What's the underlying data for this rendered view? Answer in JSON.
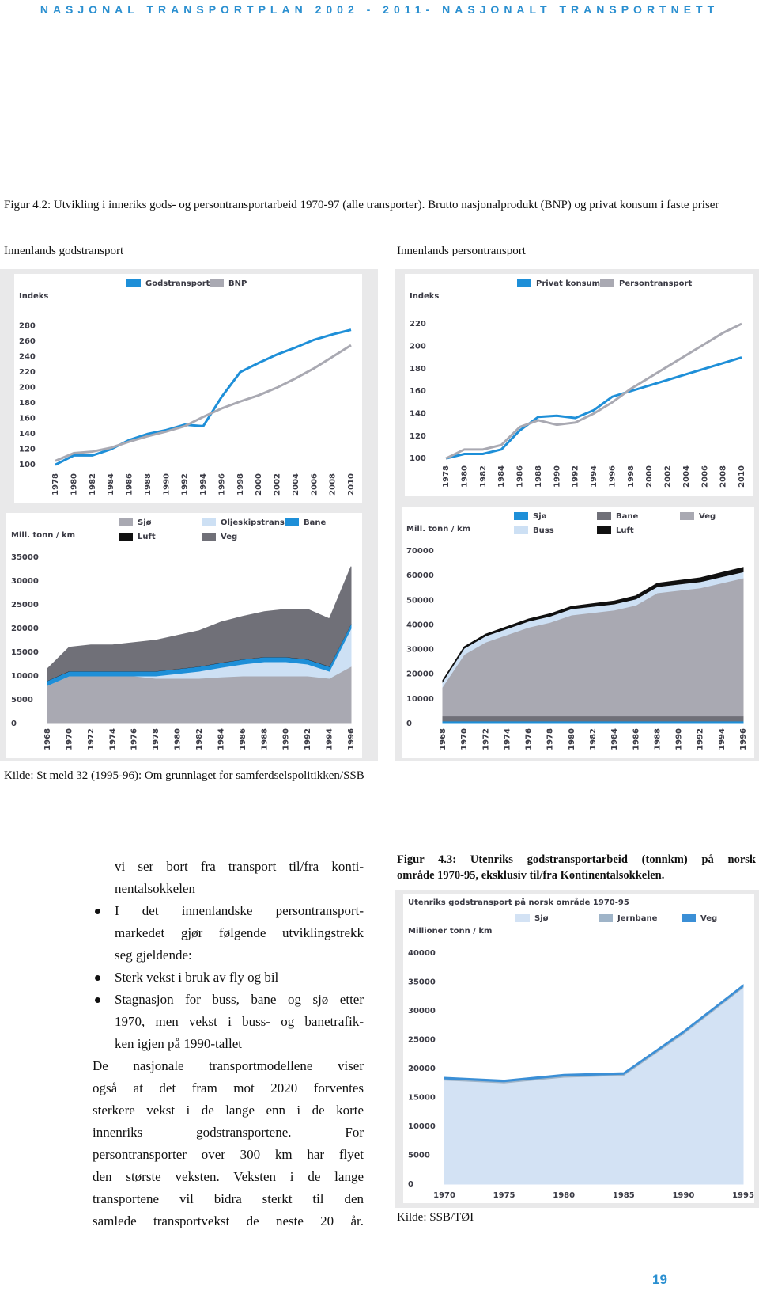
{
  "header": {
    "title": "NASJONAL TRANSPORTPLAN 2002 - 2011- NASJONALT TRANSPORTNETT"
  },
  "figure_42": {
    "caption": "Figur 4.2: Utvikling i inneriks gods- og persontransportarbeid 1970-97 (alle transporter). Brutto nasjonalprodukt (BNP) og privat konsum i faste priser",
    "left_title": "Innenlands godstransport",
    "right_title": "Innenlands persontransport",
    "source": "Kilde: St meld 32 (1995-96): Om grunnlaget for samferdselspolitikken/SSB"
  },
  "charts": [
    {
      "type": "line",
      "y_label": "Indeks",
      "categories": [
        "1978",
        "1980",
        "1982",
        "1984",
        "1986",
        "1988",
        "1990",
        "1992",
        "1994",
        "1996",
        "1998",
        "2000",
        "2002",
        "2004",
        "2006",
        "2008",
        "2010"
      ],
      "ylim": [
        95,
        290
      ],
      "yticks": [
        100,
        120,
        140,
        160,
        180,
        200,
        220,
        240,
        260,
        280
      ],
      "series": [
        {
          "name": "Godstransport",
          "color": "#1e8fd8",
          "values": [
            100,
            112,
            112,
            120,
            132,
            140,
            145,
            152,
            150,
            188,
            220,
            232,
            243,
            252,
            262,
            269,
            275
          ]
        },
        {
          "name": "BNP",
          "color": "#a9a9b2",
          "values": [
            105,
            115,
            117,
            122,
            130,
            137,
            143,
            150,
            162,
            173,
            182,
            190,
            200,
            212,
            225,
            240,
            255
          ]
        }
      ]
    },
    {
      "type": "line",
      "y_label": "Indeks",
      "categories": [
        "1978",
        "1980",
        "1982",
        "1984",
        "1986",
        "1988",
        "1990",
        "1992",
        "1994",
        "1996",
        "1998",
        "2000",
        "2002",
        "2004",
        "2006",
        "2008",
        "2010"
      ],
      "ylim": [
        98,
        225
      ],
      "yticks": [
        100,
        120,
        140,
        160,
        180,
        200,
        220
      ],
      "series": [
        {
          "name": "Privat konsum",
          "color": "#1e8fd8",
          "values": [
            100,
            104,
            104,
            108,
            125,
            137,
            138,
            136,
            143,
            155,
            160,
            165,
            170,
            175,
            180,
            185,
            190
          ]
        },
        {
          "name": "Persontransport",
          "color": "#a9a9b2",
          "values": [
            100,
            108,
            108,
            112,
            128,
            134,
            130,
            132,
            140,
            150,
            162,
            172,
            182,
            192,
            202,
            212,
            220
          ]
        }
      ]
    },
    {
      "type": "area",
      "y_label": "Mill. tonn / km",
      "categories": [
        "1968",
        "1970",
        "1972",
        "1974",
        "1976",
        "1978",
        "1980",
        "1982",
        "1984",
        "1986",
        "1988",
        "1990",
        "1992",
        "1994",
        "1996"
      ],
      "ylim": [
        0,
        35000
      ],
      "yticks": [
        0,
        5000,
        10000,
        15000,
        20000,
        25000,
        30000,
        35000
      ],
      "series": [
        {
          "name": "Sjø",
          "color": "#a9a9b2",
          "values": [
            8000,
            10000,
            10000,
            10000,
            10000,
            9500,
            9500,
            9500,
            9800,
            10000,
            10000,
            10000,
            10000,
            9500,
            12000
          ]
        },
        {
          "name": "Oljeskipstrans",
          "color": "#cde0f4",
          "values": [
            0,
            0,
            0,
            0,
            0,
            500,
            1000,
            1500,
            2000,
            2500,
            3000,
            3000,
            2500,
            1500,
            8000
          ]
        },
        {
          "name": "Bane",
          "color": "#1e8fd8",
          "values": [
            1000,
            1000,
            1000,
            1000,
            1000,
            1000,
            1000,
            1000,
            1000,
            1000,
            1000,
            1000,
            1000,
            1000,
            1000
          ]
        },
        {
          "name": "Luft",
          "color": "#111111",
          "values": [
            50,
            50,
            50,
            50,
            50,
            50,
            50,
            50,
            50,
            50,
            50,
            50,
            50,
            50,
            50
          ]
        },
        {
          "name": "Veg",
          "color": "#707078",
          "values": [
            2500,
            5000,
            5500,
            5500,
            6000,
            6500,
            7000,
            7500,
            8500,
            9000,
            9500,
            10000,
            10500,
            10000,
            12000
          ]
        }
      ]
    },
    {
      "type": "area",
      "y_label": "Mill. tonn / km",
      "categories": [
        "1968",
        "1970",
        "1972",
        "1974",
        "1976",
        "1978",
        "1980",
        "1982",
        "1984",
        "1986",
        "1988",
        "1990",
        "1992",
        "1994",
        "1996"
      ],
      "ylim": [
        0,
        70000
      ],
      "yticks": [
        0,
        10000,
        20000,
        30000,
        40000,
        50000,
        60000,
        70000
      ],
      "series": [
        {
          "name": "Sjø",
          "color": "#1e8fd8",
          "values": [
            1000,
            1000,
            1000,
            1000,
            1000,
            1000,
            1000,
            1000,
            1000,
            1000,
            1000,
            1000,
            1000,
            1000,
            1000
          ]
        },
        {
          "name": "Bane",
          "color": "#707078",
          "values": [
            2000,
            2000,
            2000,
            2000,
            2000,
            2000,
            2000,
            2000,
            2000,
            2000,
            2000,
            2000,
            2000,
            2000,
            2000
          ]
        },
        {
          "name": "Veg",
          "color": "#a9a9b2",
          "values": [
            12000,
            25000,
            30000,
            33000,
            36000,
            38000,
            41000,
            42000,
            43000,
            45000,
            50000,
            51000,
            52000,
            54000,
            56000
          ]
        },
        {
          "name": "Buss",
          "color": "#cde0f4",
          "values": [
            2000,
            2500,
            2500,
            2500,
            2500,
            2500,
            2500,
            2500,
            2500,
            2500,
            2500,
            2500,
            2500,
            2500,
            2500
          ]
        },
        {
          "name": "Luft",
          "color": "#111111",
          "values": [
            500,
            600,
            700,
            800,
            900,
            1000,
            1000,
            1100,
            1200,
            1300,
            1400,
            1500,
            1600,
            1700,
            1800
          ]
        }
      ]
    },
    {
      "type": "area",
      "title": "Utenriks godstransport på norsk område 1970-95",
      "y_label": "Millioner tonn / km",
      "categories": [
        "1970",
        "1975",
        "1980",
        "1985",
        "1990",
        "1995"
      ],
      "ylim": [
        0,
        40000
      ],
      "yticks": [
        0,
        5000,
        10000,
        15000,
        20000,
        25000,
        30000,
        35000,
        40000
      ],
      "series": [
        {
          "name": "Sjø",
          "color": "#d3e2f4",
          "values": [
            18000,
            17500,
            18500,
            18800,
            26000,
            34000
          ]
        },
        {
          "name": "Jernbane",
          "color": "#9fb4c8",
          "values": [
            200,
            200,
            200,
            200,
            200,
            200
          ]
        },
        {
          "name": "Veg",
          "color": "#3b8fd6",
          "values": [
            300,
            300,
            300,
            300,
            300,
            300
          ]
        }
      ]
    }
  ],
  "body": {
    "intro_lines": [
      "vi ser bort fra transport til/fra konti-",
      "nentalsokkelen"
    ],
    "bullets": [
      [
        "I det innenlandske persontransport-",
        "markedet gjør følgende utviklingstrekk",
        "seg gjeldende:"
      ],
      [
        "Sterk vekst i bruk av fly og bil"
      ],
      [
        "Stagnasjon for buss, bane og sjø etter",
        "1970, men vekst i buss- og banetrafik-",
        "ken igjen på 1990-tallet"
      ]
    ],
    "paragraph_lines": [
      "De nasjonale transportmodellene viser",
      "også at det fram mot 2020 forventes",
      "sterkere vekst i de lange enn i de korte",
      "innenriks godstransportene. For",
      "persontransporter over 300 km har flyet",
      "den største veksten. Veksten i de lange",
      "transportene vil bidra sterkt til den",
      "samlede transportvekst de neste 20 år."
    ]
  },
  "figure_43": {
    "caption_lines": [
      "Figur 4.3: Utenriks godstransportarbeid (tonnkm) på norsk",
      "område 1970-95, eksklusiv til/fra Kontinentalsokkelen."
    ],
    "source": "Kilde: SSB/TØI"
  },
  "page_number": "19"
}
